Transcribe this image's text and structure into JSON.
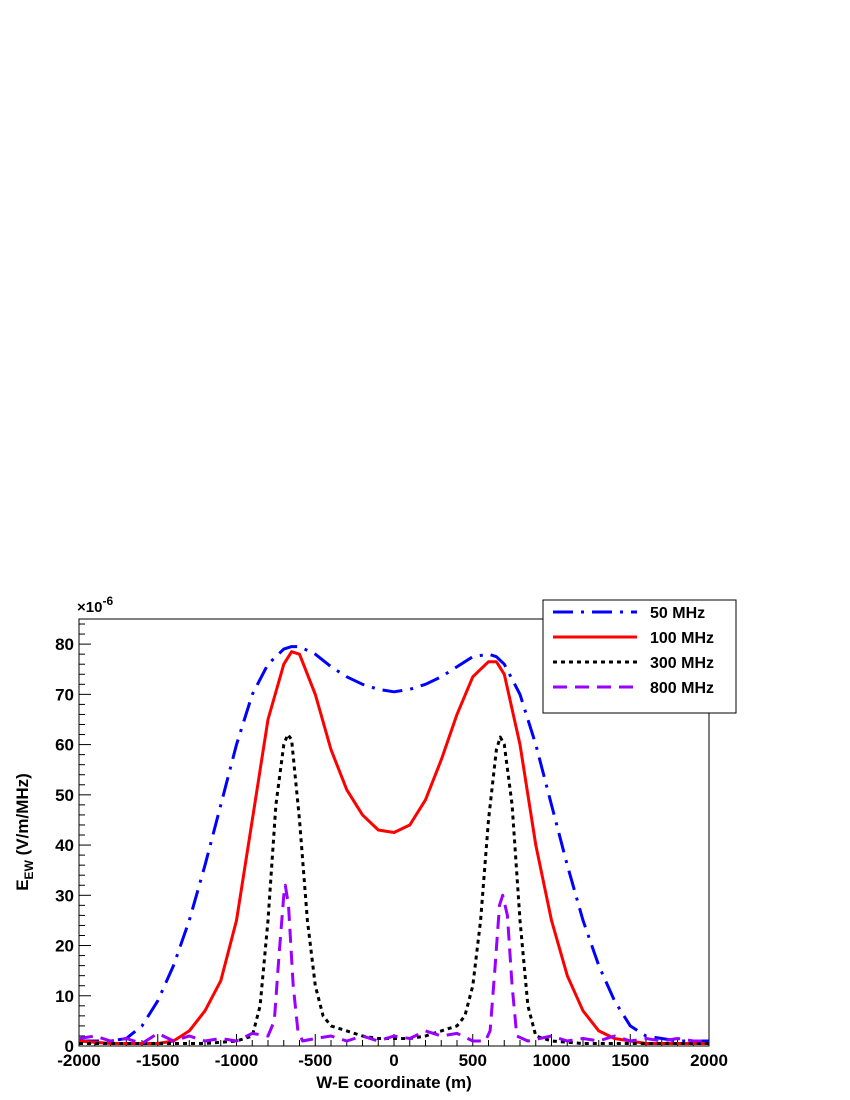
{
  "chart_data": {
    "type": "line",
    "xlabel": "W-E coordinate (m)",
    "ylabel_main": "E",
    "ylabel_sub": "EW",
    "ylabel_rest": " (V/m/MHz)",
    "y_exponent_prefix": "×10",
    "y_exponent": "-6",
    "xlim": [
      -2000,
      2000
    ],
    "ylim": [
      0,
      85
    ],
    "x_ticks": [
      -2000,
      -1500,
      -1000,
      -500,
      0,
      500,
      1000,
      1500,
      2000
    ],
    "x_tick_labels": [
      "-2000",
      "-1500",
      "-1000",
      "-500",
      "0",
      "500",
      "1000",
      "1500",
      "2000"
    ],
    "y_ticks": [
      0,
      10,
      20,
      30,
      40,
      50,
      60,
      70,
      80
    ],
    "y_tick_labels": [
      "0",
      "10",
      "20",
      "30",
      "40",
      "50",
      "60",
      "70",
      "80"
    ],
    "legend_position": "top-right",
    "grid": false,
    "series": [
      {
        "name": "50 MHz",
        "color": "#0000ff",
        "dash": "dashdot",
        "x": [
          -2000,
          -1900,
          -1800,
          -1700,
          -1600,
          -1500,
          -1400,
          -1300,
          -1200,
          -1100,
          -1000,
          -900,
          -800,
          -700,
          -650,
          -600,
          -500,
          -400,
          -300,
          -200,
          -100,
          0,
          100,
          200,
          300,
          400,
          500,
          600,
          650,
          700,
          800,
          900,
          1000,
          1100,
          1200,
          1300,
          1400,
          1500,
          1600,
          1700,
          1800,
          1900,
          2000
        ],
        "y": [
          1,
          1,
          1,
          1.5,
          4,
          9,
          16,
          25,
          36,
          48,
          60,
          70,
          76,
          79,
          79.5,
          79.5,
          78,
          75.5,
          73.5,
          72,
          71,
          70.5,
          71,
          72,
          73.5,
          75.5,
          77.5,
          78,
          77.5,
          76,
          70,
          60,
          48,
          36,
          25,
          16,
          9,
          4,
          2,
          1.5,
          1,
          1,
          1
        ]
      },
      {
        "name": "100 MHz",
        "color": "#ff0000",
        "dash": "solid",
        "x": [
          -2000,
          -1800,
          -1600,
          -1500,
          -1400,
          -1300,
          -1200,
          -1100,
          -1000,
          -900,
          -800,
          -700,
          -650,
          -600,
          -500,
          -400,
          -300,
          -200,
          -100,
          0,
          100,
          200,
          300,
          400,
          500,
          600,
          650,
          700,
          800,
          900,
          1000,
          1100,
          1200,
          1300,
          1400,
          1600,
          1800,
          2000
        ],
        "y": [
          1,
          0.5,
          0.5,
          0.5,
          1,
          3,
          7,
          13,
          25,
          45,
          65,
          76,
          78.5,
          78,
          70,
          59,
          51,
          46,
          43,
          42.5,
          44,
          49,
          57,
          66,
          73.5,
          76.5,
          76.5,
          74,
          60,
          40,
          25,
          14,
          7,
          3,
          1.5,
          0.5,
          0.5,
          0.5
        ]
      },
      {
        "name": "300 MHz",
        "color": "#000000",
        "dash": "dotted",
        "x": [
          -2000,
          -1500,
          -1200,
          -1000,
          -900,
          -850,
          -800,
          -750,
          -700,
          -675,
          -650,
          -600,
          -550,
          -500,
          -450,
          -400,
          -300,
          -200,
          -100,
          0,
          100,
          200,
          300,
          400,
          450,
          500,
          550,
          600,
          650,
          675,
          700,
          750,
          800,
          850,
          900,
          1000,
          1200,
          1500,
          2000
        ],
        "y": [
          0.5,
          0.5,
          0.5,
          1,
          2,
          8,
          25,
          48,
          60,
          62,
          61,
          45,
          25,
          12,
          6,
          4,
          3,
          2,
          1.5,
          1.5,
          1.5,
          2,
          3,
          4,
          6,
          12,
          25,
          45,
          59,
          61.5,
          60,
          48,
          25,
          8,
          2,
          1,
          0.5,
          0.5,
          0.5
        ]
      },
      {
        "name": "800 MHz",
        "color": "#9900ff",
        "dash": "dashed",
        "x": [
          -2000,
          -1900,
          -1800,
          -1700,
          -1600,
          -1500,
          -1400,
          -1300,
          -1200,
          -1100,
          -1000,
          -900,
          -800,
          -760,
          -730,
          -700,
          -690,
          -670,
          -640,
          -610,
          -580,
          -500,
          -400,
          -300,
          -200,
          -100,
          0,
          100,
          200,
          300,
          400,
          500,
          580,
          610,
          640,
          670,
          690,
          720,
          750,
          780,
          850,
          1000,
          1100,
          1200,
          1300,
          1400,
          1500,
          1600,
          1700,
          1800,
          1900,
          2000
        ],
        "y": [
          1.5,
          2,
          1,
          1.5,
          0.5,
          2.5,
          1,
          2,
          1,
          1.5,
          1,
          2.5,
          2,
          5,
          18,
          30,
          32,
          28,
          12,
          3,
          1,
          1.5,
          2,
          1,
          2,
          1,
          2,
          1.5,
          3,
          2,
          2.5,
          1,
          1,
          3,
          15,
          28,
          30,
          26,
          12,
          2,
          1,
          2,
          1,
          1.5,
          1,
          2,
          1,
          1.5,
          1,
          1.5,
          1,
          1
        ]
      }
    ]
  }
}
